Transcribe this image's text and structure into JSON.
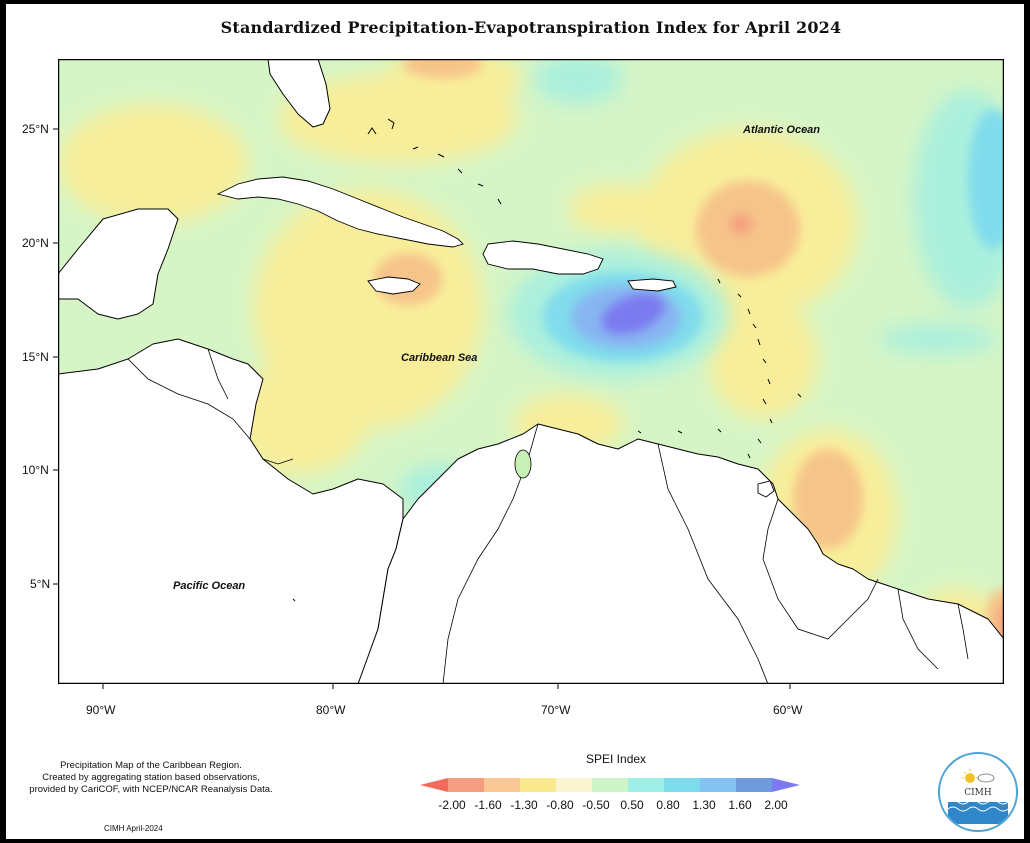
{
  "title": "Standardized Precipitation-Evapotranspiration Index for April 2024",
  "map_labels": {
    "atlantic": "Atlantic Ocean",
    "caribbean": "Caribbean Sea",
    "pacific": "Pacific Ocean"
  },
  "lat_labels": [
    "25°N",
    "20°N",
    "15°N",
    "10°N",
    "5°N"
  ],
  "lon_labels": [
    "90°W",
    "80°W",
    "70°W",
    "60°W"
  ],
  "legend": {
    "title": "SPEI Index",
    "values": [
      "-2.00",
      "-1.60",
      "-1.30",
      "-0.80",
      "-0.50",
      "0.50",
      "0.80",
      "1.30",
      "1.60",
      "2.00"
    ],
    "colors": [
      "#ef6a5b",
      "#f39e80",
      "#f9c896",
      "#f9e98c",
      "#f8f5d0",
      "#cff4c8",
      "#9ef0e6",
      "#7ddcec",
      "#84c2f2",
      "#6f9bdc",
      "#7c7af0"
    ]
  },
  "footer": {
    "line1": "Precipitation Map of the Caribbean Region.",
    "line2": "Created by aggregating station based observations,",
    "line3": "provided by CariCOF, with NCEP/NCAR Reanalysis Data.",
    "credit": "CIMH April-2024"
  },
  "logo": {
    "abbr": "CIMH"
  }
}
